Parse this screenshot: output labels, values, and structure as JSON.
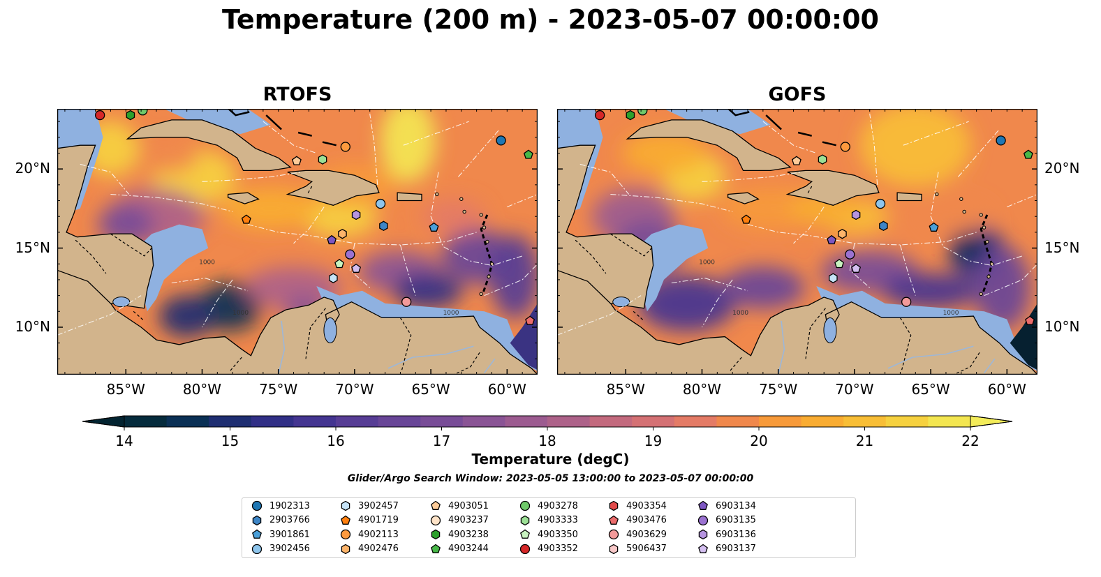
{
  "title": "Temperature (200 m) - 2023-05-07 00:00:00",
  "panels": [
    {
      "title": "RTOFS",
      "variant": "rtofs"
    },
    {
      "title": "GOFS",
      "variant": "gofs"
    }
  ],
  "map": {
    "lon_range": [
      -89.5,
      -58.0
    ],
    "lat_range": [
      7.0,
      23.8
    ],
    "lon_ticks": [
      "85°W",
      "80°W",
      "75°W",
      "70°W",
      "65°W",
      "60°W"
    ],
    "lat_ticks": [
      "20°N",
      "15°N",
      "10°N"
    ],
    "contour_label": "1000",
    "colors": {
      "ocean_shelf": "#8fb1e0",
      "land": "#d2b48c",
      "deep_dark": "#062030"
    }
  },
  "colorbar": {
    "min": 14,
    "max": 22,
    "ticks": [
      "14",
      "15",
      "16",
      "17",
      "18",
      "19",
      "20",
      "21",
      "22"
    ],
    "label": "Temperature (degC)",
    "colors": [
      "#052b3c",
      "#0a3055",
      "#1e2e71",
      "#312f86",
      "#443591",
      "#573d95",
      "#684597",
      "#784c97",
      "#8a5495",
      "#9c5b90",
      "#ad6289",
      "#c36a7e",
      "#d47174",
      "#e47b66",
      "#f0884c",
      "#f79a3a",
      "#f9ac32",
      "#f8be36",
      "#f6d13f",
      "#f3e651"
    ]
  },
  "search_window": "Glider/Argo Search Window: 2023-05-05 13:00:00 to 2023-05-07 00:00:00",
  "legend": [
    {
      "label": "1902313",
      "marker": "circle",
      "color": "#1f77b4"
    },
    {
      "label": "2903766",
      "marker": "hexagon",
      "color": "#3d85c6"
    },
    {
      "label": "3901861",
      "marker": "pentagon",
      "color": "#4a9fd8"
    },
    {
      "label": "3902456",
      "marker": "circle",
      "color": "#8ec5ec"
    },
    {
      "label": "3902457",
      "marker": "hexagon",
      "color": "#c6e3f7"
    },
    {
      "label": "4901719",
      "marker": "pentagon",
      "color": "#ff7f0e"
    },
    {
      "label": "4902113",
      "marker": "circle",
      "color": "#fd9a3e"
    },
    {
      "label": "4902476",
      "marker": "hexagon",
      "color": "#fdb46a"
    },
    {
      "label": "4903051",
      "marker": "pentagon",
      "color": "#fdcb98"
    },
    {
      "label": "4903237",
      "marker": "circle",
      "color": "#fee3c8"
    },
    {
      "label": "4903238",
      "marker": "hexagon",
      "color": "#2ca02c"
    },
    {
      "label": "4903244",
      "marker": "pentagon",
      "color": "#48b848"
    },
    {
      "label": "4903278",
      "marker": "circle",
      "color": "#6fc96a"
    },
    {
      "label": "4903333",
      "marker": "hexagon",
      "color": "#9ce096"
    },
    {
      "label": "4903350",
      "marker": "pentagon",
      "color": "#c8f3c0"
    },
    {
      "label": "4903352",
      "marker": "circle",
      "color": "#d62728"
    },
    {
      "label": "4903354",
      "marker": "hexagon",
      "color": "#e04a4a"
    },
    {
      "label": "4903476",
      "marker": "pentagon",
      "color": "#ea6b6b"
    },
    {
      "label": "4903629",
      "marker": "circle",
      "color": "#f29a9a"
    },
    {
      "label": "5906437",
      "marker": "hexagon",
      "color": "#f8c8c8"
    },
    {
      "label": "6903134",
      "marker": "pentagon",
      "color": "#7e57c2"
    },
    {
      "label": "6903135",
      "marker": "circle",
      "color": "#9b72d1"
    },
    {
      "label": "6903136",
      "marker": "hexagon",
      "color": "#b694e0"
    },
    {
      "label": "6903137",
      "marker": "pentagon",
      "color": "#d4bff0"
    }
  ],
  "floats": [
    {
      "id": "1902313",
      "lon": -60.4,
      "lat": 21.8
    },
    {
      "id": "2903766",
      "lon": -68.1,
      "lat": 16.4
    },
    {
      "id": "3901861",
      "lon": -64.8,
      "lat": 16.3
    },
    {
      "id": "3902456",
      "lon": -68.3,
      "lat": 17.8
    },
    {
      "id": "3902457",
      "lon": -71.4,
      "lat": 13.1
    },
    {
      "id": "4901719",
      "lon": -77.1,
      "lat": 16.8
    },
    {
      "id": "4902113",
      "lon": -70.6,
      "lat": 21.4
    },
    {
      "id": "4903051",
      "lon": -73.8,
      "lat": 20.5
    },
    {
      "id": "4903238",
      "lon": -84.7,
      "lat": 23.4
    },
    {
      "id": "4903244",
      "lon": -58.6,
      "lat": 20.9
    },
    {
      "id": "4903278",
      "lon": -83.9,
      "lat": 23.7
    },
    {
      "id": "4903333",
      "lon": -72.1,
      "lat": 20.6
    },
    {
      "id": "4903350",
      "lon": -71.0,
      "lat": 14.0
    },
    {
      "id": "4903476",
      "lon": -58.5,
      "lat": 10.4
    },
    {
      "id": "4903629",
      "lon": -66.6,
      "lat": 11.6
    },
    {
      "id": "4903352",
      "lon": -86.7,
      "lat": 23.4
    },
    {
      "id": "6903134",
      "lon": -71.5,
      "lat": 15.5
    },
    {
      "id": "6903135",
      "lon": -70.3,
      "lat": 14.6
    },
    {
      "id": "6903136",
      "lon": -69.9,
      "lat": 17.1
    },
    {
      "id": "6903137",
      "lon": -69.9,
      "lat": 13.7
    },
    {
      "id": "4902476",
      "lon": -70.8,
      "lat": 15.9
    }
  ]
}
